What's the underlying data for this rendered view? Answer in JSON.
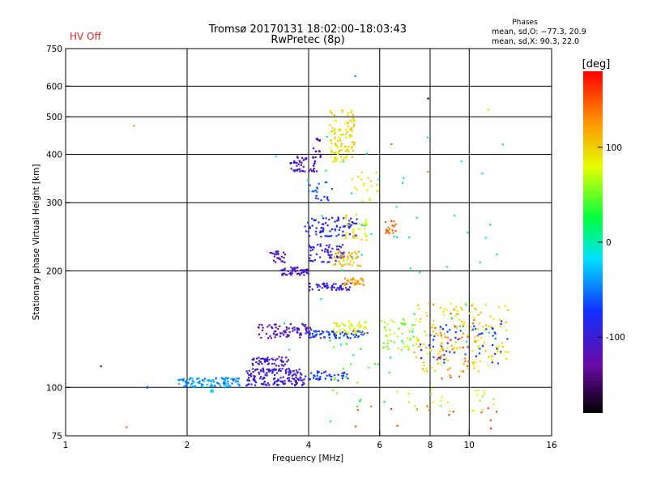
{
  "header": {
    "title": "Tromsø 20170131 18:02:00–18:03:43",
    "subtitle": "RwPretec (8p)",
    "status": "HV Off",
    "status_color": "#dd2222",
    "phases_heading": "Phases",
    "phases_o": "mean, sd,O: −77.3, 20.9",
    "phases_x": "mean, sd,X:  90.3, 22.0"
  },
  "chart_data": {
    "type": "scatter",
    "xlabel": "Frequency [MHz]",
    "ylabel": "Stationary phase Virtual Height [km]",
    "x_scale": "log",
    "y_scale": "log",
    "xlim": [
      1,
      16
    ],
    "ylim": [
      75,
      750
    ],
    "x_ticks": [
      1,
      2,
      4,
      6,
      8,
      10,
      16
    ],
    "y_ticks": [
      75,
      100,
      200,
      300,
      400,
      500,
      600,
      750
    ],
    "x_grid": [
      2,
      4,
      6,
      8,
      10
    ],
    "y_grid": [
      100,
      200,
      300,
      400,
      500,
      600
    ],
    "grid": true,
    "colorbar": {
      "label": "[deg]",
      "ticks": [
        -100,
        0,
        100
      ],
      "range": [
        -180,
        180
      ],
      "colormap": "rainbow (black → purple → blue → cyan → green → yellow → red)"
    },
    "series": [
      {
        "clusters": [
          {
            "x": [
              1.9,
              2.7
            ],
            "y": [
              100,
              106
            ],
            "phase": -40,
            "n": 110
          },
          {
            "x": 2.3,
            "y": 98,
            "phase": -20,
            "n": 20
          },
          {
            "x": [
              2.8,
              3.9
            ],
            "y": [
              101,
              112
            ],
            "phase": -100,
            "n": 160
          },
          {
            "x": [
              2.9,
              3.6
            ],
            "y": [
              113,
              120
            ],
            "phase": -105,
            "n": 50
          },
          {
            "x": [
              3.0,
              4.1
            ],
            "y": [
              134,
              146
            ],
            "phase": -115,
            "n": 80
          },
          {
            "x": [
              4.0,
              5.6
            ],
            "y": [
              134,
              140
            ],
            "phase": -70,
            "n": 70
          },
          {
            "x": [
              4.6,
              5.6
            ],
            "y": [
              137,
              148
            ],
            "phase": 80,
            "n": 45
          },
          {
            "x": [
              3.9,
              5.0
            ],
            "y": [
              104,
              110
            ],
            "phase": -80,
            "n": 40
          },
          {
            "x": [
              3.4,
              4.0
            ],
            "y": [
              195,
              205
            ],
            "phase": -110,
            "n": 50
          },
          {
            "x": [
              3.2,
              3.5
            ],
            "y": [
              210,
              225
            ],
            "phase": -110,
            "n": 25
          },
          {
            "x": [
              4.0,
              5.1
            ],
            "y": [
              178,
              186
            ],
            "phase": -95,
            "n": 50
          },
          {
            "x": [
              4.9,
              5.5
            ],
            "y": [
              183,
              192
            ],
            "phase": 120,
            "n": 30
          },
          {
            "x": [
              4.0,
              4.9
            ],
            "y": [
              210,
              235
            ],
            "phase": -100,
            "n": 60
          },
          {
            "x": [
              4.6,
              5.4
            ],
            "y": [
              205,
              225
            ],
            "phase": 110,
            "n": 45
          },
          {
            "x": [
              3.9,
              5.3
            ],
            "y": [
              245,
              275
            ],
            "phase": -85,
            "n": 80
          },
          {
            "x": [
              4.9,
              5.6
            ],
            "y": [
              240,
              280
            ],
            "phase": 90,
            "n": 35
          },
          {
            "x": [
              3.6,
              4.2
            ],
            "y": [
              360,
              395
            ],
            "phase": -110,
            "n": 45
          },
          {
            "x": [
              4.1,
              4.3
            ],
            "y": [
              390,
              440
            ],
            "phase": -130,
            "n": 15
          },
          {
            "x": [
              4.5,
              5.2
            ],
            "y": [
              380,
              520
            ],
            "phase": 95,
            "n": 110
          },
          {
            "x": [
              4.0,
              4.6
            ],
            "y": [
              300,
              345
            ],
            "phase": -60,
            "n": 20
          },
          {
            "x": [
              6.2,
              6.6
            ],
            "y": [
              250,
              270
            ],
            "phase": 150,
            "n": 20
          },
          {
            "x": [
              5.0,
              6.0
            ],
            "y": [
              300,
              360
            ],
            "phase": 85,
            "n": 20
          },
          {
            "x": [
              6.0,
              7.4
            ],
            "y": [
              125,
              150
            ],
            "phase": 60,
            "n": 50
          },
          {
            "x": [
              7.3,
              12.5
            ],
            "y": [
              110,
              165
            ],
            "phase": 95,
            "n": 150
          },
          {
            "x": [
              7.5,
              12.5
            ],
            "y": [
              115,
              150
            ],
            "phase": -70,
            "n": 60
          },
          {
            "x": [
              8.0,
              10.5
            ],
            "y": [
              105,
              165
            ],
            "phase": 140,
            "n": 40
          },
          {
            "x": [
              6.5,
              11.5
            ],
            "y": [
              85,
              100
            ],
            "phase": 70,
            "n": 25
          },
          {
            "x": [
              5.0,
              12.5
            ],
            "y": [
              78,
              90
            ],
            "phase": 150,
            "n": 15
          },
          {
            "x": [
              4.5,
              6.5
            ],
            "y": [
              80,
              130
            ],
            "phase": 40,
            "n": 20
          },
          {
            "x": [
              3.3,
              12.5
            ],
            "y": [
              110,
              450
            ],
            "phase": 0,
            "n": 50
          },
          {
            "x": 1.22,
            "y": 113,
            "phase": -120,
            "n": 1
          },
          {
            "x": 1.6,
            "y": 100,
            "phase": -70,
            "n": 2
          },
          {
            "x": 1.48,
            "y": 475,
            "phase": 130,
            "n": 1
          },
          {
            "x": 1.42,
            "y": 79,
            "phase": 150,
            "n": 1
          },
          {
            "x": 5.2,
            "y": 640,
            "phase": -50,
            "n": 1
          },
          {
            "x": 7.9,
            "y": 555,
            "phase": -170,
            "n": 1
          },
          {
            "x": 11.2,
            "y": 520,
            "phase": 100,
            "n": 1
          },
          {
            "x": 7.9,
            "y": 360,
            "phase": 150,
            "n": 1
          },
          {
            "x": 6.4,
            "y": 425,
            "phase": 150,
            "n": 1
          }
        ]
      }
    ]
  }
}
